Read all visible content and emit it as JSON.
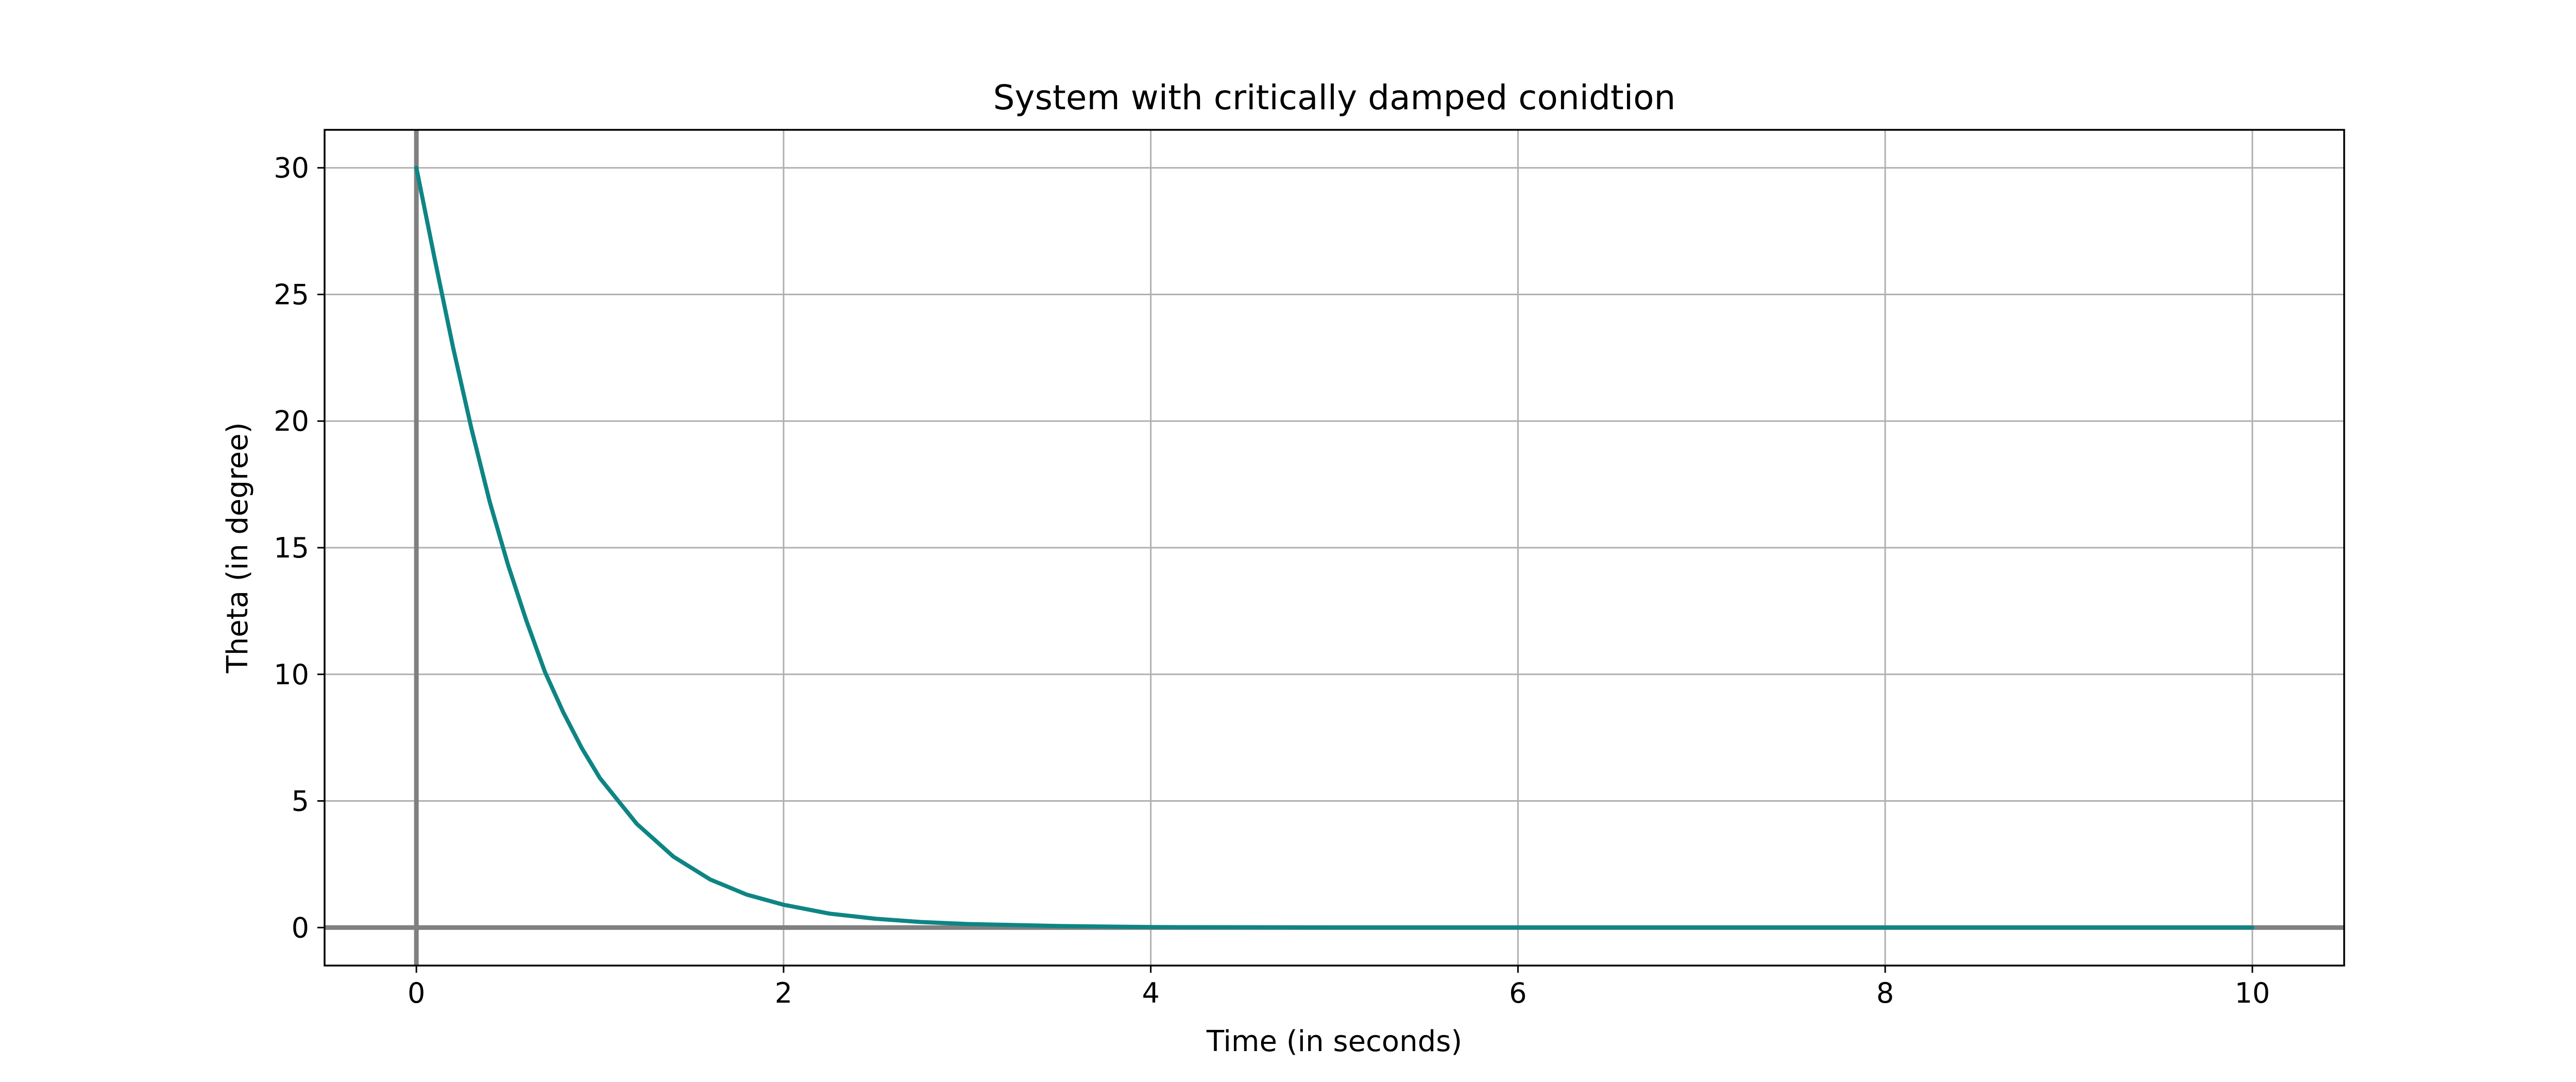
{
  "chart_data": {
    "type": "line",
    "title": "System with critically damped conidtion",
    "xlabel": "Time (in seconds)",
    "ylabel": "Theta (in degree)",
    "xlim": [
      -0.5,
      10.5
    ],
    "ylim": [
      -1.5,
      31.5
    ],
    "xticks": [
      0,
      2,
      4,
      6,
      8,
      10
    ],
    "yticks": [
      0,
      5,
      10,
      15,
      20,
      25,
      30
    ],
    "grid": true,
    "reference_lines": {
      "x": 0,
      "y": 0,
      "color": "#808080"
    },
    "series": [
      {
        "color": "#0e8584",
        "x": [
          0,
          0.1,
          0.2,
          0.3,
          0.4,
          0.5,
          0.6,
          0.7,
          0.8,
          0.9,
          1.0,
          1.2,
          1.4,
          1.6,
          1.8,
          2.0,
          2.25,
          2.5,
          2.75,
          3.0,
          3.5,
          4.0,
          5.0,
          6.0,
          7.0,
          8.0,
          9.0,
          10.0
        ],
        "values": [
          30.0,
          26.4,
          22.9,
          19.7,
          16.8,
          14.3,
          12.1,
          10.1,
          8.5,
          7.1,
          5.9,
          4.1,
          2.8,
          1.9,
          1.3,
          0.9,
          0.55,
          0.35,
          0.22,
          0.14,
          0.06,
          0.02,
          0.0,
          0.0,
          0.0,
          0.0,
          0.0,
          0.0
        ]
      }
    ]
  }
}
